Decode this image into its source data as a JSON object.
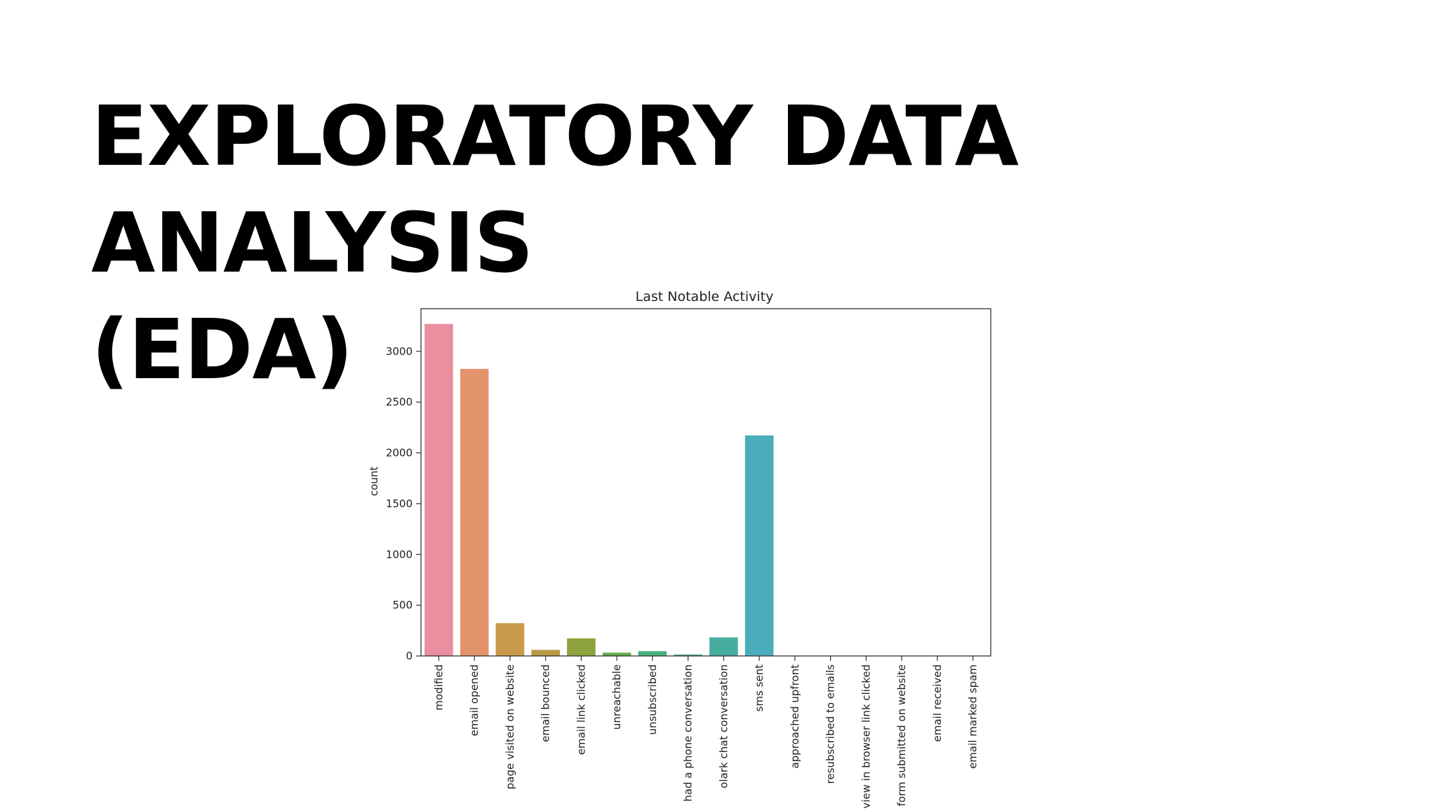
{
  "slide": {
    "title_line1": "EXPLORATORY DATA ANALYSIS",
    "title_line2": "(EDA)"
  },
  "chart_data": {
    "type": "bar",
    "title": "Last Notable Activity",
    "xlabel": "",
    "ylabel": "count",
    "ylim": [
      0,
      3420
    ],
    "yticks": [
      0,
      500,
      1000,
      1500,
      2000,
      2500,
      3000
    ],
    "grid": false,
    "legend": "none",
    "categories": [
      "modified",
      "email opened",
      "page visited on website",
      "email bounced",
      "email link clicked",
      "unreachable",
      "unsubscribed",
      "had a phone conversation",
      "olark chat conversation",
      "sms sent",
      "approached upfront",
      "resubscribed to emails",
      "view in browser link clicked",
      "form submitted on website",
      "email received",
      "email marked spam"
    ],
    "values": [
      3270,
      2827,
      323,
      60,
      173,
      32,
      47,
      14,
      183,
      2172,
      1,
      1,
      1,
      1,
      1,
      2
    ],
    "colors": [
      "#e98fa0",
      "#e3946c",
      "#c99a4a",
      "#b79a45",
      "#8ea33e",
      "#60ad44",
      "#47b07d",
      "#4aaa91",
      "#48ac9f",
      "#49adbb",
      "#4fa8d0",
      "#7ca3dd",
      "#a69ae3",
      "#cd91e0",
      "#e28ccb",
      "#ea8ab6"
    ]
  }
}
